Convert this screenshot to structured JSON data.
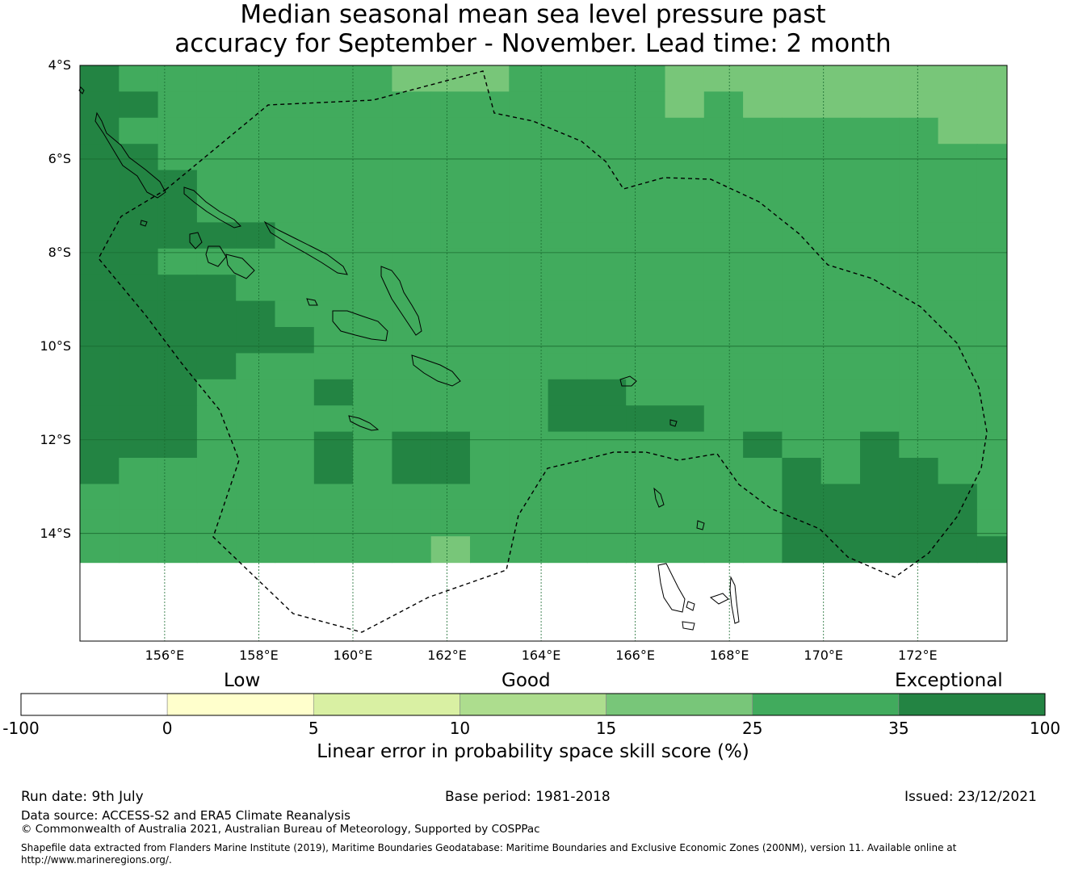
{
  "title": {
    "line1": "Median seasonal mean sea level pressure past",
    "line2": "accuracy for September - November. Lead time: 2 month"
  },
  "map": {
    "lat_ticks": [
      {
        "value": -4,
        "label": "4°S"
      },
      {
        "value": -6,
        "label": "6°S"
      },
      {
        "value": -8,
        "label": "8°S"
      },
      {
        "value": -10,
        "label": "10°S"
      },
      {
        "value": -12,
        "label": "12°S"
      },
      {
        "value": -14,
        "label": "14°S"
      }
    ],
    "lon_ticks": [
      {
        "value": 156,
        "label": "156°E"
      },
      {
        "value": 158,
        "label": "158°E"
      },
      {
        "value": 160,
        "label": "160°E"
      },
      {
        "value": 162,
        "label": "162°E"
      },
      {
        "value": 164,
        "label": "164°E"
      },
      {
        "value": 166,
        "label": "166°E"
      },
      {
        "value": 168,
        "label": "168°E"
      },
      {
        "value": 170,
        "label": "170°E"
      },
      {
        "value": 172,
        "label": "172°E"
      }
    ],
    "extent": {
      "lon_min": 154.2,
      "lon_max": 173.9,
      "lat_min": -16.3,
      "lat_max": -4.0
    },
    "grid_step": 0.833,
    "category_colors": {
      "c": "#78c679",
      "g": "#41ab5d",
      "d": "#238443"
    },
    "cells": [
      "dggggggggggggggggggggg",
      "ddddddddddggggggggggggg",
      "ddddddddddggggggggg",
      "ggggggggggggggggggggg",
      "gggggggggggggggggggggg",
      "gggggggggggggggggggggg",
      "ggggggggggggggggggggggg"
    ],
    "grid_rows": [
      "dgggggggcccggggcccccccccc",
      "ddgggggggggggggcgcccccccc",
      "dgggggggggggggggggggggccc",
      "ddgggggggggggggggggggggggg",
      "dddggggggggggggggggggggg",
      "dddgggggggggggggggggggggg",
      "dddddggggggggggggggggggg",
      "ddgggggggggggggggggggggg",
      "ddddgggggggggggggggggggg",
      "dddddggggggggggggggggggg",
      "ddddddggggggggggggggggggg",
      "ddddgggggggggggggggggggggg",
      "dddgggdgggggddggggggggggg",
      "dddgggggggggddddgggggggg",
      "dddgggdgddgggggggdggdgggg",
      "dgggggdgddggggggggdgddgggg",
      "ggggggggggggggggggdddddggg",
      "ggggggggggggggggggdddddggg",
      "gggggggggcggggggggddddddgg"
    ],
    "colorbar": {
      "low": "Low",
      "good": "Good",
      "exceptional": "Exceptional",
      "ticks": [
        "-100",
        "0",
        "5",
        "10",
        "15",
        "25",
        "35",
        "100"
      ],
      "colors": [
        "#ffffff",
        "#ffffcc",
        "#d9f0a3",
        "#addd8e",
        "#78c679",
        "#41ab5d",
        "#238443"
      ],
      "label": "Linear error in probability space skill score (%)"
    }
  },
  "footer": {
    "run_date": "Run date: 9th July",
    "base_period": "Base period: 1981-2018",
    "issued": "Issued: 23/12/2021",
    "data_source": "Data source: ACCESS-S2 and ERA5 Climate Reanalysis",
    "copyright": "© Commonwealth of Australia 2021, Australian Bureau of Meteorology, Supported by COSPPac",
    "shapefile_line1": "Shapefile data extracted from Flanders Marine Institute (2019), Maritime Boundaries Geodatabase: Maritime Boundaries and Exclusive Economic Zones (200NM), version 11. Available online at",
    "shapefile_line2": "http://www.marineregions.org/."
  }
}
